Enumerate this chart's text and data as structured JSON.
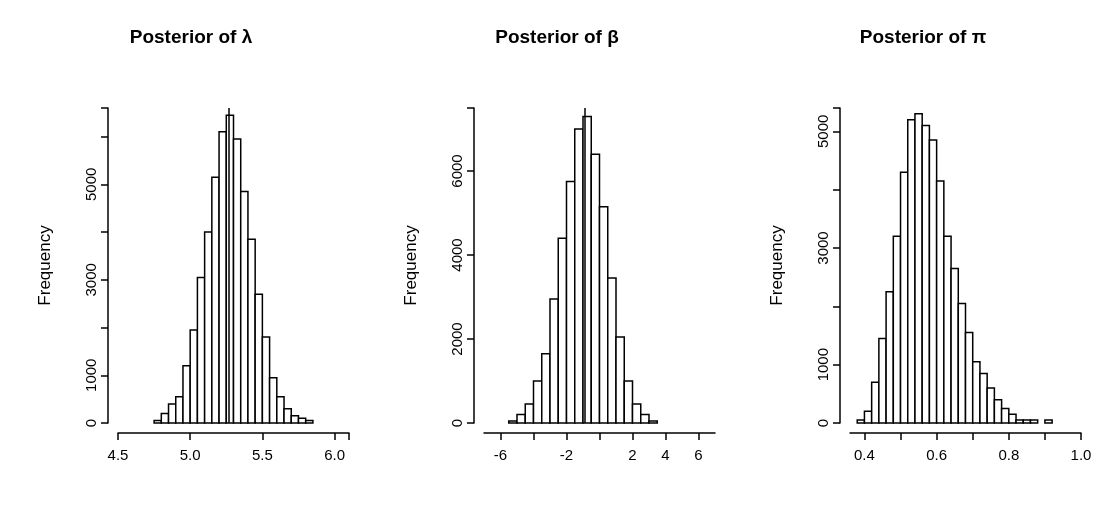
{
  "chart_data": [
    {
      "type": "histogram",
      "title": "Posterior of λ",
      "ylabel": "Frequency",
      "color": "#ffffff",
      "bins": [
        4.55,
        4.6,
        4.65,
        4.7,
        4.75,
        4.8,
        4.85,
        4.9,
        4.95,
        5.0,
        5.05,
        5.1,
        5.15,
        5.2,
        5.25,
        5.3,
        5.35,
        5.4,
        5.45,
        5.5,
        5.55,
        5.6,
        5.65,
        5.7,
        5.75,
        5.8,
        5.85,
        5.9,
        5.95,
        6.0,
        6.05,
        6.1
      ],
      "values": [
        0,
        0,
        0,
        0,
        50,
        200,
        400,
        550,
        1200,
        1950,
        3050,
        4000,
        5150,
        6100,
        6450,
        5950,
        4850,
        3850,
        2700,
        1800,
        950,
        550,
        300,
        150,
        100,
        50,
        0,
        0,
        0,
        0,
        0
      ],
      "xlim": [
        4.5,
        6.1
      ],
      "xticks": [
        4.5,
        {
          "value": 5,
          "label": "5.0"
        },
        5.5,
        {
          "value": 6,
          "label": "6.0"
        }
      ],
      "ylim": [
        0,
        6600
      ],
      "yticks": [
        0,
        1000,
        {
          "value": 2000,
          "label": null
        },
        3000,
        {
          "value": 4000,
          "label": null
        },
        5000,
        {
          "value": 6000,
          "label": null
        }
      ],
      "ref_lines": [
        {
          "axis": "x",
          "value": 5.27,
          "color": "#000000"
        }
      ]
    },
    {
      "type": "histogram",
      "title": "Posterior of β",
      "ylabel": "Frequency",
      "color": "#ffffff",
      "bins": [
        -7,
        -6.5,
        -6,
        -5.5,
        -5,
        -4.5,
        -4,
        -3.5,
        -3,
        -2.5,
        -2,
        -1.5,
        -1,
        -0.5,
        0,
        0.5,
        1,
        1.5,
        2,
        2.5,
        3,
        3.5,
        4,
        4.5,
        5,
        5.5,
        6,
        6.5,
        7
      ],
      "values": [
        0,
        0,
        0,
        50,
        200,
        450,
        1000,
        1650,
        2950,
        4400,
        5750,
        7000,
        7300,
        6400,
        5150,
        3450,
        2050,
        1000,
        450,
        200,
        50,
        0,
        0,
        0,
        0,
        0,
        0,
        0
      ],
      "xlim": [
        -7,
        7
      ],
      "xticks": [
        -6,
        {
          "value": -4,
          "label": null
        },
        -2,
        {
          "value": 0,
          "label": null
        },
        2,
        4,
        6
      ],
      "ylim": [
        0,
        7500
      ],
      "yticks": [
        0,
        2000,
        4000,
        6000
      ],
      "ref_lines": [
        {
          "axis": "x",
          "value": -0.9,
          "color": "#000000"
        }
      ]
    },
    {
      "type": "histogram",
      "title": "Posterior of π",
      "ylabel": "Frequency",
      "color": "#ffffff",
      "bins": [
        0.36,
        0.38,
        0.4,
        0.42,
        0.44,
        0.46,
        0.48,
        0.5,
        0.52,
        0.54,
        0.56,
        0.58,
        0.6,
        0.62,
        0.64,
        0.66,
        0.68,
        0.7,
        0.72,
        0.74,
        0.76,
        0.78,
        0.8,
        0.82,
        0.84,
        0.86,
        0.88,
        0.9,
        0.92,
        0.94,
        0.96,
        0.98,
        1.0
      ],
      "values": [
        0,
        50,
        200,
        700,
        1450,
        2250,
        3200,
        4300,
        5200,
        5300,
        5100,
        4850,
        4150,
        3200,
        2650,
        2050,
        1550,
        1050,
        850,
        600,
        400,
        250,
        150,
        50,
        50,
        50,
        0,
        50,
        0,
        0,
        0,
        0
      ],
      "xlim": [
        0.36,
        1.0
      ],
      "xticks": [
        0.4,
        {
          "value": 0.5,
          "label": null
        },
        0.6,
        {
          "value": 0.7,
          "label": null
        },
        0.8,
        {
          "value": 0.9,
          "label": null
        },
        {
          "value": 1,
          "label": "1.0"
        }
      ],
      "ylim": [
        0,
        5400
      ],
      "yticks": [
        0,
        1000,
        {
          "value": 2000,
          "label": null
        },
        3000,
        {
          "value": 4000,
          "label": null
        },
        5000
      ]
    }
  ]
}
